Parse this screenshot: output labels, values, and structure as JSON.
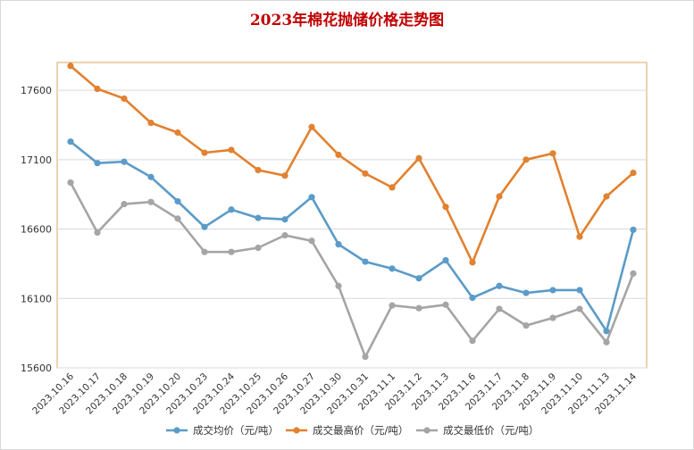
{
  "chart_data": {
    "type": "line",
    "title": "2023年棉花抛储价格走势图",
    "xlabel": "",
    "ylabel": "",
    "ylim": [
      15600,
      17800
    ],
    "yticks": [
      15600,
      16100,
      16600,
      17100,
      17600
    ],
    "grid": true,
    "legend_position": "bottom",
    "categories": [
      "2023.10.16",
      "2023.10.17",
      "2023.10.18",
      "2023.10.19",
      "2023.10.20",
      "2023.10.23",
      "2023.10.24",
      "2023.10.25",
      "2023.10.26",
      "2023.10.27",
      "2023.10.30",
      "2023.10.31",
      "2023.11.1",
      "2023.11.2",
      "2023.11.3",
      "2023.11.6",
      "2023.11.7",
      "2023.11.8",
      "2023.11.9",
      "2023.11.10",
      "2023.11.13",
      "2023.11.14"
    ],
    "series": [
      {
        "name": "成交均价（元/吨）",
        "color": "#5b9bc8",
        "values": [
          17230,
          17075,
          17085,
          16975,
          16800,
          16615,
          16740,
          16680,
          16670,
          16830,
          16490,
          16365,
          16315,
          16245,
          16375,
          16105,
          16190,
          16140,
          16160,
          16160,
          15865,
          16595
        ]
      },
      {
        "name": "成交最高价（元/吨）",
        "color": "#e2812f",
        "values": [
          17775,
          17610,
          17540,
          17365,
          17295,
          17150,
          17170,
          17025,
          16985,
          17335,
          17135,
          17000,
          16900,
          17110,
          16760,
          16360,
          16835,
          17100,
          17145,
          16545,
          16835,
          17005
        ]
      },
      {
        "name": "成交最低价（元/吨）",
        "color": "#a5a5a5",
        "values": [
          16935,
          16575,
          16780,
          16795,
          16675,
          16435,
          16435,
          16465,
          16555,
          16515,
          16190,
          15680,
          16050,
          16030,
          16055,
          15795,
          16025,
          15905,
          15960,
          16025,
          15785,
          16280
        ]
      }
    ]
  }
}
